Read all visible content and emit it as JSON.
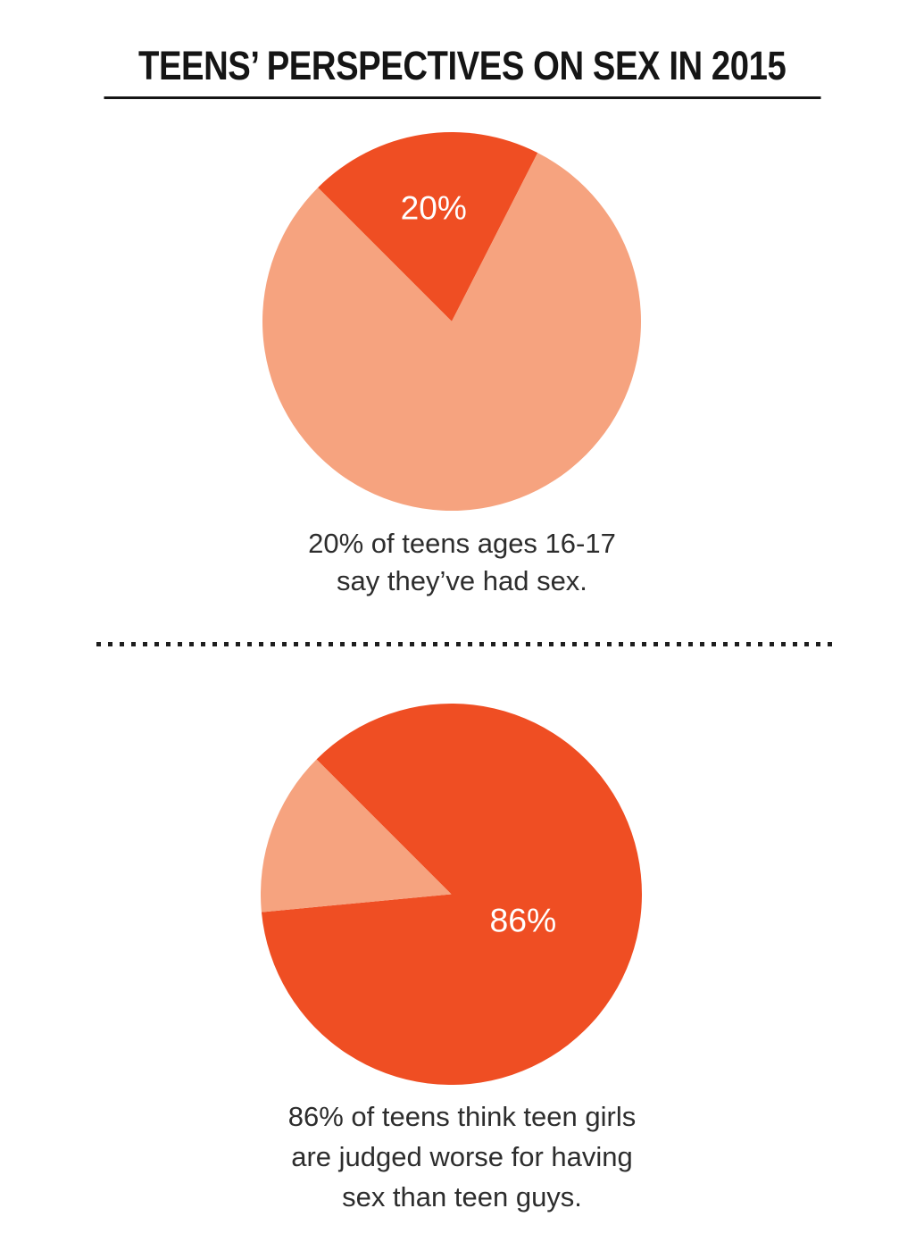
{
  "header": {
    "title": "TEENS’ PERSPECTIVES ON SEX IN 2015"
  },
  "colors": {
    "dark_orange": "#ef4e23",
    "light_orange": "#f6a37f",
    "caption_text": "#2d2d2d",
    "title_text": "#151515",
    "divider_dot": "#1e1e1e",
    "pie_label_text": "#ffffff",
    "background": "#ffffff"
  },
  "chart_data": [
    {
      "type": "pie",
      "start_angle_deg": -45,
      "direction": "clockwise",
      "legend": "none",
      "slices": [
        {
          "name": "teens ages 16-17 who say they have had sex",
          "value": 20,
          "unit": "%",
          "label": "20%",
          "color": "#ef4e23",
          "label_r_frac": 0.61
        },
        {
          "name": "remainder",
          "value": 80,
          "unit": "%",
          "label": "",
          "color": "#f6a37f",
          "label_r_frac": 0
        }
      ],
      "caption": "20% of teens ages 16-17\nsay they’ve had sex."
    },
    {
      "type": "pie",
      "start_angle_deg": -45,
      "direction": "clockwise",
      "legend": "none",
      "slices": [
        {
          "name": "teens who think teen girls are judged worse for having sex than teen guys",
          "value": 86,
          "unit": "%",
          "label": "86%",
          "color": "#ef4e23",
          "label_r_frac": 0.4
        },
        {
          "name": "remainder",
          "value": 14,
          "unit": "%",
          "label": "",
          "color": "#f6a37f",
          "label_r_frac": 0
        }
      ],
      "caption": "86% of teens think teen girls\nare judged worse for having\nsex than teen guys."
    }
  ]
}
